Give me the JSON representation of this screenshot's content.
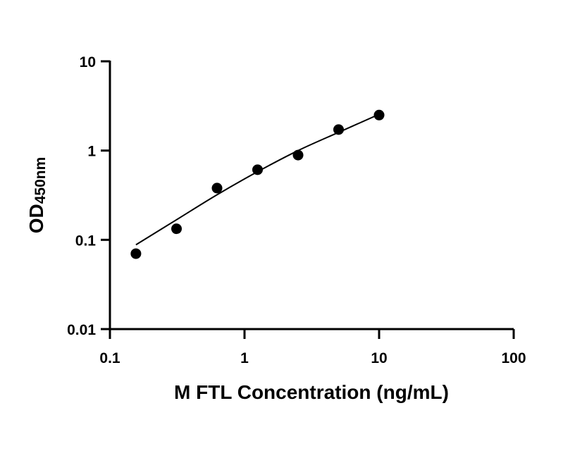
{
  "chart_data": {
    "type": "scatter",
    "title": "",
    "xlabel": "M FTL Concentration (ng/mL)",
    "ylabel": {
      "main": "OD",
      "sub": "450nm"
    },
    "x_scale": "log",
    "y_scale": "log",
    "xlim": [
      0.1,
      100
    ],
    "ylim": [
      0.01,
      10
    ],
    "xticks": [
      {
        "value": 0.1,
        "label": "0.1"
      },
      {
        "value": 1,
        "label": "1"
      },
      {
        "value": 10,
        "label": "10"
      },
      {
        "value": 100,
        "label": "100"
      }
    ],
    "yticks": [
      {
        "value": 0.01,
        "label": "0.01"
      },
      {
        "value": 0.1,
        "label": "0.1"
      },
      {
        "value": 1,
        "label": "1"
      },
      {
        "value": 10,
        "label": "10"
      }
    ],
    "grid": false,
    "legend": "none",
    "series": [
      {
        "points": [
          {
            "x": 0.156,
            "y": 0.07
          },
          {
            "x": 0.3125,
            "y": 0.133
          },
          {
            "x": 0.625,
            "y": 0.38
          },
          {
            "x": 1.25,
            "y": 0.61
          },
          {
            "x": 2.5,
            "y": 0.89
          },
          {
            "x": 5,
            "y": 1.72
          },
          {
            "x": 10,
            "y": 2.5
          }
        ],
        "fit_curve": [
          {
            "x": 0.156,
            "y": 0.088
          },
          {
            "x": 0.3125,
            "y": 0.168
          },
          {
            "x": 0.625,
            "y": 0.32
          },
          {
            "x": 1.25,
            "y": 0.58
          },
          {
            "x": 2.5,
            "y": 1.0
          },
          {
            "x": 5,
            "y": 1.6
          },
          {
            "x": 10,
            "y": 2.55
          }
        ],
        "color": "#000000"
      }
    ]
  }
}
